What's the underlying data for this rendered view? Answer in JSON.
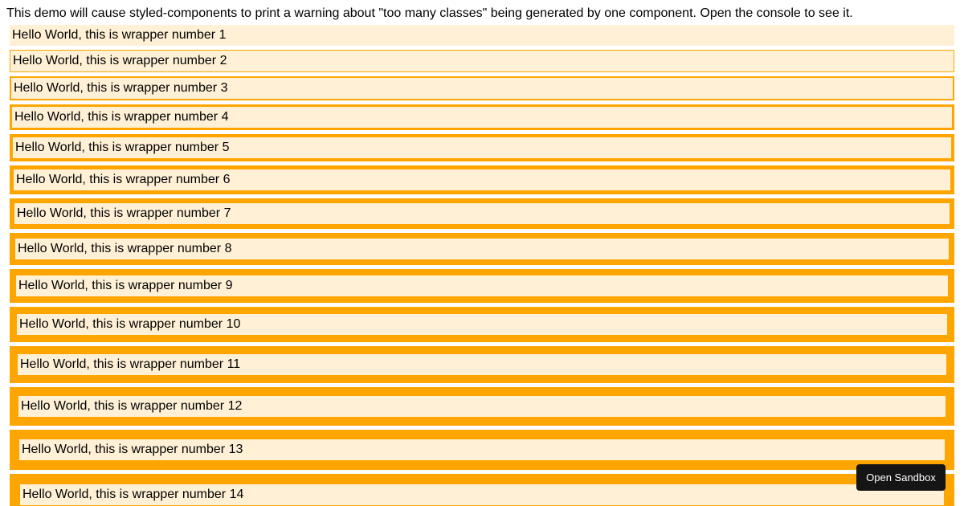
{
  "intro_text": "This demo will cause styled-components to print a warning about \"too many classes\" being generated by one component. Open the console to see it.",
  "colors": {
    "wrapper_border": "#FFA500",
    "wrapper_background": "#FFF0D6",
    "button_background": "#151515",
    "button_text": "#ffffff"
  },
  "wrappers": [
    {
      "label": "Hello World, this is wrapper number 1"
    },
    {
      "label": "Hello World, this is wrapper number 2"
    },
    {
      "label": "Hello World, this is wrapper number 3"
    },
    {
      "label": "Hello World, this is wrapper number 4"
    },
    {
      "label": "Hello World, this is wrapper number 5"
    },
    {
      "label": "Hello World, this is wrapper number 6"
    },
    {
      "label": "Hello World, this is wrapper number 7"
    },
    {
      "label": "Hello World, this is wrapper number 8"
    },
    {
      "label": "Hello World, this is wrapper number 9"
    },
    {
      "label": "Hello World, this is wrapper number 10"
    },
    {
      "label": "Hello World, this is wrapper number 11"
    },
    {
      "label": "Hello World, this is wrapper number 12"
    },
    {
      "label": "Hello World, this is wrapper number 13"
    },
    {
      "label": "Hello World, this is wrapper number 14"
    }
  ],
  "open_sandbox_label": "Open Sandbox"
}
